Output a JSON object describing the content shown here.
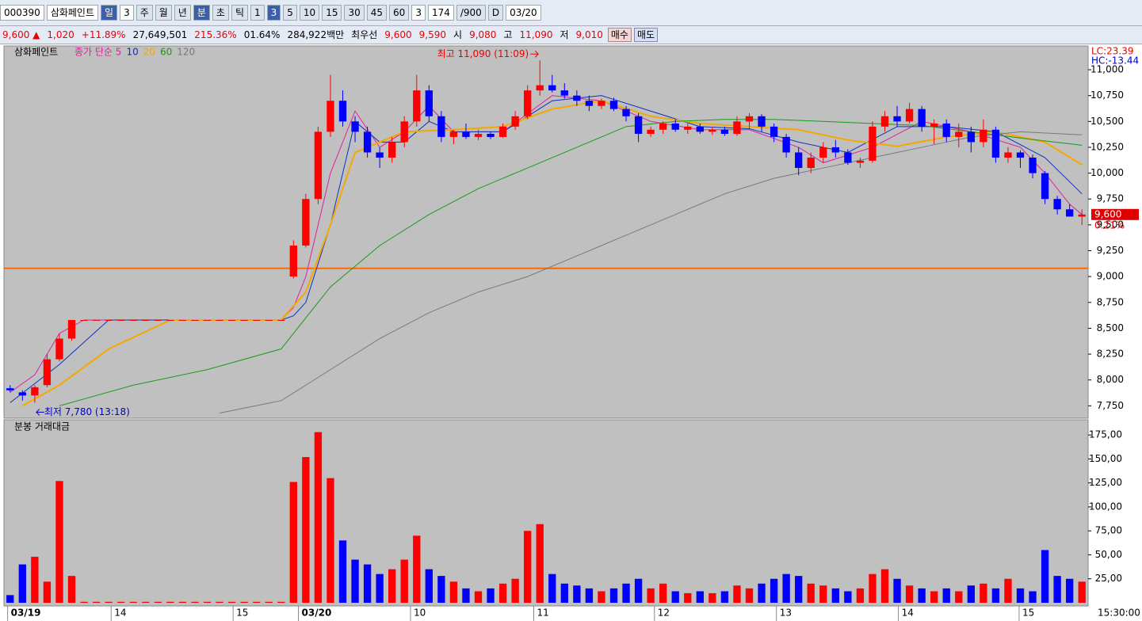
{
  "toolbar": {
    "code": "000390",
    "name": "삼화페인트",
    "periods": [
      "일",
      "3",
      "주",
      "월",
      "년",
      "분",
      "초",
      "틱"
    ],
    "intervals": [
      "1",
      "3",
      "5",
      "10",
      "15",
      "30",
      "45",
      "60"
    ],
    "count": "3",
    "bars": "174",
    "max": "/900",
    "date_toggle": "D",
    "date": "03/20"
  },
  "quote": {
    "price": "9,600 ▲",
    "change": "1,020",
    "rate": "+11.89%",
    "volume": "27,649,501",
    "vol_ratio": "215.36%",
    "turnover": "01.64%",
    "amount": "284,922백만",
    "best_label": "최우선",
    "ask": "9,600",
    "bid": "9,590",
    "open_label": "시",
    "open": "9,080",
    "high_label": "고",
    "high": "11,090",
    "low_label": "저",
    "low": "9,010",
    "buy": "매수",
    "sell": "매도"
  },
  "chart_data": {
    "type": "candlestick",
    "title": "삼화페인트",
    "open": [
      7920,
      7880,
      7850,
      7950,
      8200,
      8400,
      8580,
      8580,
      8580,
      8580,
      8580,
      8580,
      8580,
      8580,
      8580,
      8580,
      8580,
      8580,
      8580,
      8580,
      8580,
      8580,
      8580,
      9000,
      9300,
      9750,
      10400,
      10700,
      10500,
      10400,
      10200,
      10150,
      10300,
      10500,
      10800,
      10550,
      10350,
      10400,
      10350,
      10380,
      10350,
      10450,
      10550,
      10800,
      10850,
      10800,
      10750,
      10700,
      10650,
      10700,
      10620,
      10550,
      10380,
      10420,
      10480,
      10420,
      10450,
      10400,
      10420,
      10380,
      10500,
      10550,
      10450,
      10350,
      10200,
      10050,
      10150,
      10250,
      10200,
      10100,
      10120,
      10450,
      10550,
      10500,
      10620,
      10450,
      10480,
      10350,
      10400,
      10300,
      10420,
      10150,
      10200,
      10150,
      10000,
      9750,
      9650,
      9580
    ],
    "high": [
      7950,
      7900,
      7950,
      8250,
      8450,
      8580,
      8580,
      8580,
      8580,
      8580,
      8580,
      8580,
      8580,
      8580,
      8580,
      8580,
      8580,
      8580,
      8580,
      8580,
      8580,
      8580,
      8580,
      9350,
      9800,
      10450,
      10950,
      10800,
      10550,
      10450,
      10250,
      10350,
      10550,
      10950,
      10850,
      10600,
      10420,
      10480,
      10420,
      10400,
      10480,
      10600,
      10850,
      11090,
      10950,
      10870,
      10800,
      10750,
      10720,
      10730,
      10650,
      10580,
      10450,
      10500,
      10520,
      10480,
      10480,
      10450,
      10450,
      10550,
      10580,
      10570,
      10480,
      10380,
      10250,
      10200,
      10300,
      10320,
      10230,
      10150,
      10500,
      10600,
      10650,
      10680,
      10650,
      10520,
      10520,
      10480,
      10450,
      10520,
      10450,
      10250,
      10220,
      10180,
      10020,
      9780,
      9700,
      9650
    ],
    "low": [
      7880,
      7800,
      7780,
      7930,
      8180,
      8380,
      8580,
      8580,
      8580,
      8580,
      8580,
      8580,
      8580,
      8580,
      8580,
      8580,
      8580,
      8580,
      8580,
      8580,
      8580,
      8580,
      8580,
      8980,
      9280,
      9700,
      10350,
      10450,
      10300,
      10150,
      10050,
      10100,
      10250,
      10450,
      10500,
      10300,
      10280,
      10330,
      10320,
      10330,
      10340,
      10420,
      10520,
      10750,
      10780,
      10720,
      10650,
      10600,
      10620,
      10600,
      10500,
      10300,
      10350,
      10380,
      10400,
      10380,
      10380,
      10370,
      10360,
      10360,
      10420,
      10400,
      10300,
      10150,
      9980,
      10000,
      10100,
      10150,
      10080,
      10050,
      10100,
      10400,
      10450,
      10480,
      10400,
      10280,
      10300,
      10250,
      10200,
      10250,
      10100,
      10100,
      10050,
      9950,
      9700,
      9600,
      9580,
      9500
    ],
    "close": [
      7900,
      7850,
      7930,
      8200,
      8400,
      8580,
      8580,
      8580,
      8580,
      8580,
      8580,
      8580,
      8580,
      8580,
      8580,
      8580,
      8580,
      8580,
      8580,
      8580,
      8580,
      8580,
      8580,
      9300,
      9750,
      10400,
      10700,
      10500,
      10400,
      10200,
      10150,
      10300,
      10500,
      10800,
      10550,
      10350,
      10400,
      10350,
      10380,
      10350,
      10450,
      10550,
      10800,
      10850,
      10800,
      10750,
      10700,
      10650,
      10700,
      10620,
      10550,
      10380,
      10420,
      10480,
      10420,
      10450,
      10400,
      10420,
      10380,
      10500,
      10550,
      10450,
      10350,
      10200,
      10050,
      10150,
      10250,
      10200,
      10100,
      10120,
      10450,
      10550,
      10500,
      10620,
      10450,
      10480,
      10350,
      10400,
      10300,
      10420,
      10150,
      10200,
      10150,
      10000,
      9750,
      9650,
      9580,
      9600
    ],
    "up_color": "#ff0000",
    "down_color": "#0000ff",
    "moving_averages": [
      {
        "name": "종가 단순 5",
        "color": "#e020a0",
        "x": [
          0,
          2,
          4,
          6,
          22,
          23,
          24,
          25,
          26,
          28,
          30,
          32,
          34,
          36,
          40,
          44,
          48,
          52,
          56,
          60,
          64,
          66,
          70,
          74,
          78,
          82,
          84,
          86,
          87
        ],
        "values": [
          7880,
          8050,
          8450,
          8580,
          8580,
          8700,
          9000,
          9500,
          10000,
          10600,
          10250,
          10400,
          10650,
          10400,
          10400,
          10750,
          10700,
          10500,
          10420,
          10420,
          10250,
          10100,
          10250,
          10500,
          10400,
          10250,
          10000,
          9700,
          9600
        ]
      },
      {
        "name": "10",
        "color": "#1030c0",
        "x": [
          0,
          4,
          8,
          22,
          23,
          24,
          26,
          28,
          30,
          32,
          34,
          36,
          40,
          44,
          48,
          52,
          56,
          60,
          64,
          68,
          72,
          76,
          80,
          84,
          87
        ],
        "values": [
          7780,
          8150,
          8580,
          8580,
          8620,
          8750,
          9500,
          10500,
          10300,
          10300,
          10500,
          10400,
          10400,
          10700,
          10750,
          10600,
          10450,
          10430,
          10300,
          10200,
          10450,
          10450,
          10400,
          10150,
          9800
        ]
      },
      {
        "name": "20",
        "color": "#f5a800",
        "x": [
          1,
          4,
          8,
          13,
          22,
          24,
          26,
          28,
          30,
          32,
          36,
          40,
          44,
          48,
          52,
          56,
          60,
          64,
          68,
          72,
          76,
          80,
          84,
          87
        ],
        "values": [
          7750,
          7950,
          8300,
          8580,
          8580,
          8850,
          9500,
          10200,
          10300,
          10400,
          10420,
          10450,
          10620,
          10700,
          10550,
          10480,
          10450,
          10420,
          10320,
          10260,
          10350,
          10400,
          10300,
          10080
        ]
      },
      {
        "name": "60",
        "color": "#1a9a1a",
        "x": [
          4,
          10,
          16,
          22,
          26,
          30,
          34,
          38,
          42,
          46,
          50,
          54,
          58,
          62,
          66,
          70,
          74,
          78,
          82,
          87
        ],
        "values": [
          7750,
          7950,
          8100,
          8300,
          8900,
          9300,
          9600,
          9850,
          10050,
          10250,
          10450,
          10500,
          10520,
          10520,
          10500,
          10480,
          10460,
          10400,
          10340,
          10270
        ]
      },
      {
        "name": "120",
        "color": "#7a7a7a",
        "x": [
          17,
          22,
          26,
          30,
          34,
          38,
          42,
          46,
          50,
          54,
          58,
          62,
          66,
          70,
          74,
          78,
          82,
          87
        ],
        "values": [
          7680,
          7800,
          8100,
          8400,
          8650,
          8850,
          9000,
          9200,
          9400,
          9600,
          9800,
          9950,
          10050,
          10150,
          10250,
          10350,
          10400,
          10370
        ]
      }
    ],
    "reference_line": {
      "value": 9080,
      "color": "#ff6a00"
    },
    "ylim": [
      7630,
      11230
    ],
    "yticks": [
      {
        "value": 7750,
        "label": "7,750"
      },
      {
        "value": 8000,
        "label": "8,000"
      },
      {
        "value": 8250,
        "label": "8,250"
      },
      {
        "value": 8500,
        "label": "8,500"
      },
      {
        "value": 8750,
        "label": "8,750"
      },
      {
        "value": 9000,
        "label": "9,000"
      },
      {
        "value": 9250,
        "label": "9,250"
      },
      {
        "value": 9500,
        "label": "9,500"
      },
      {
        "value": 9750,
        "label": "9,750"
      },
      {
        "value": 10000,
        "label": "10,000"
      },
      {
        "value": 10250,
        "label": "10,250"
      },
      {
        "value": 10500,
        "label": "10,500"
      },
      {
        "value": 10750,
        "label": "10,750"
      },
      {
        "value": 11000,
        "label": "11,000"
      }
    ],
    "xlim": [
      0,
      88
    ],
    "xticks": [
      {
        "value": 0.3,
        "label": "03/19"
      },
      {
        "value": 8.7,
        "label": "14"
      },
      {
        "value": 18.6,
        "label": "15"
      },
      {
        "value": 23.9,
        "label": "03/20"
      },
      {
        "value": 33,
        "label": "10"
      },
      {
        "value": 43,
        "label": "11"
      },
      {
        "value": 52.8,
        "label": "12"
      },
      {
        "value": 62.7,
        "label": "13"
      },
      {
        "value": 72.6,
        "label": "14"
      },
      {
        "value": 82.4,
        "label": "15"
      }
    ],
    "x_end_label": "15:30:00",
    "high_annotation": "최고 11,090 (11:09)",
    "low_annotation": "최저 7,780 (13:18)",
    "lc": "LC:23.39",
    "hc": "HC:-13.44",
    "last_price": 9600,
    "last_price_label": "9,600",
    "last_rate": "0.21%",
    "volume_title": "분봉 거래대금",
    "volume": [
      8,
      40,
      48,
      22,
      127,
      28,
      1,
      1,
      1,
      1,
      1,
      1,
      1,
      1,
      1,
      1,
      1,
      1,
      1,
      1,
      1,
      1,
      1,
      126,
      152,
      178,
      130,
      65,
      45,
      40,
      30,
      35,
      45,
      70,
      35,
      28,
      22,
      15,
      12,
      15,
      20,
      25,
      75,
      82,
      30,
      20,
      18,
      15,
      12,
      15,
      20,
      25,
      15,
      20,
      12,
      10,
      12,
      10,
      12,
      18,
      15,
      20,
      25,
      30,
      28,
      20,
      18,
      15,
      12,
      15,
      30,
      35,
      25,
      18,
      15,
      12,
      15,
      12,
      18,
      20,
      15,
      25,
      15,
      12,
      55,
      28,
      25,
      22
    ],
    "vlim": [
      0,
      190
    ],
    "vticks": [
      {
        "value": 25,
        "label": "25,00"
      },
      {
        "value": 50,
        "label": "50,00"
      },
      {
        "value": 75,
        "label": "75,00"
      },
      {
        "value": 100,
        "label": "100,00"
      },
      {
        "value": 125,
        "label": "125,00"
      },
      {
        "value": 150,
        "label": "150,00"
      },
      {
        "value": 175,
        "label": "175,00"
      }
    ]
  }
}
